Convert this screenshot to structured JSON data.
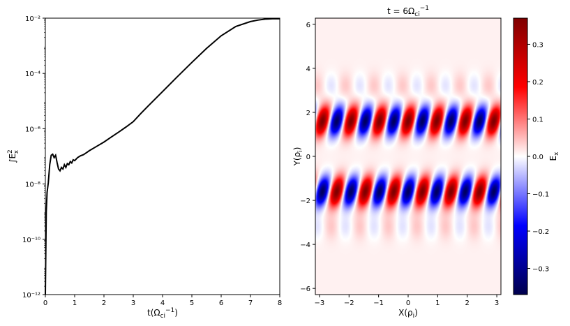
{
  "chart_data": [
    {
      "type": "line",
      "title": "",
      "xlabel": "t(Ωci⁻¹)",
      "ylabel": "∫Ex²",
      "xlim": [
        0,
        8
      ],
      "ylim": [
        1e-12,
        0.01
      ],
      "yscale": "log",
      "grid": false,
      "xticks": [
        "0",
        "1",
        "2",
        "3",
        "4",
        "5",
        "6",
        "7",
        "8"
      ],
      "yticks": [
        "10⁻¹²",
        "10⁻¹⁰",
        "10⁻⁸",
        "10⁻⁶",
        "10⁻⁴",
        "10⁻²"
      ],
      "series": [
        {
          "color": "#000000",
          "x": [
            0.0,
            0.03,
            0.06,
            0.1,
            0.15,
            0.2,
            0.25,
            0.3,
            0.35,
            0.4,
            0.45,
            0.5,
            0.55,
            0.6,
            0.65,
            0.7,
            0.75,
            0.8,
            0.85,
            0.9,
            0.95,
            1.0,
            1.1,
            1.2,
            1.3,
            1.4,
            1.5,
            1.75,
            2.0,
            2.25,
            2.5,
            2.75,
            3.0,
            3.25,
            3.5,
            4.0,
            4.5,
            5.0,
            5.5,
            6.0,
            6.5,
            7.0,
            7.25,
            7.5,
            7.75,
            8.0
          ],
          "y": [
            1e-12,
            1e-09,
            5e-09,
            1.1e-08,
            5e-08,
            1.1e-07,
            1.2e-07,
            9e-08,
            1.1e-07,
            6e-08,
            3.5e-08,
            3e-08,
            4e-08,
            3.5e-08,
            5e-08,
            4e-08,
            5.5e-08,
            5e-08,
            6.5e-08,
            5.8e-08,
            7.5e-08,
            7e-08,
            9e-08,
            1.05e-07,
            1.15e-07,
            1.35e-07,
            1.6e-07,
            2.3e-07,
            3.3e-07,
            5e-07,
            7.5e-07,
            1.15e-06,
            1.8e-06,
            3.5e-06,
            6.5e-06,
            2.2e-05,
            7.5e-05,
            0.00025,
            0.0008,
            0.0023,
            0.005,
            0.0075,
            0.0085,
            0.0092,
            0.0095,
            0.0095
          ]
        }
      ]
    },
    {
      "type": "heatmap",
      "title": "t = 6Ωci⁻¹",
      "xlabel": "X(ρi)",
      "ylabel": "Y(ρi)",
      "xlim": [
        -3.14,
        3.14
      ],
      "ylim": [
        -6.28,
        6.28
      ],
      "xticks": [
        "−3",
        "−2",
        "−1",
        "0",
        "1",
        "2",
        "3"
      ],
      "yticks": [
        "−6",
        "−4",
        "−2",
        "0",
        "2",
        "4",
        "6"
      ],
      "colormap": "seismic",
      "colorbar": {
        "label": "Ex",
        "range": [
          -0.37,
          0.37
        ],
        "ticks": [
          "−0.3",
          "−0.2",
          "−0.1",
          "0.0",
          "0.1",
          "0.2",
          "0.3"
        ]
      },
      "field": {
        "bands": [
          {
            "y_center": 1.6,
            "width": 0.45,
            "amplitude": 0.36,
            "phase": 0.0
          },
          {
            "y_center": -1.6,
            "width": 0.45,
            "amplitude": 0.36,
            "phase": 3.14
          }
        ],
        "kx": 6.5,
        "tilt": 0.5
      }
    }
  ]
}
